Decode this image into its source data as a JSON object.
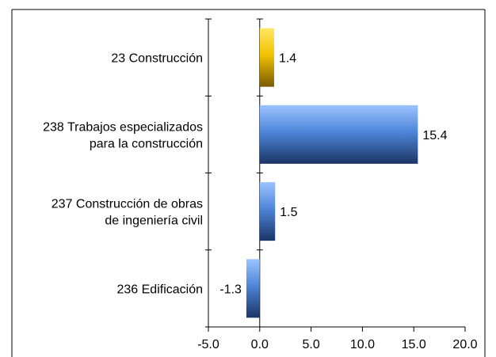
{
  "chart_data": {
    "type": "bar",
    "orientation": "horizontal",
    "categories": [
      [
        "23 Construcción"
      ],
      [
        "238 Trabajos especializados",
        "para la construcción"
      ],
      [
        "237 Construcción de obras",
        "de ingeniería civil"
      ],
      [
        "236 Edificación"
      ]
    ],
    "values": [
      1.4,
      15.4,
      1.5,
      -1.3
    ],
    "data_labels": [
      "1.4",
      "15.4",
      "1.5",
      "-1.3"
    ],
    "bar_colors": [
      "gold",
      "blue",
      "blue",
      "blue"
    ],
    "xlim": [
      -5.0,
      20.0
    ],
    "x_ticks": [
      -5.0,
      0.0,
      5.0,
      10.0,
      15.0,
      20.0
    ],
    "x_tick_labels": [
      "-5.0",
      "0.0",
      "5.0",
      "10.0",
      "15.0",
      "20.0"
    ],
    "grid": false,
    "legend": "none",
    "colors": {
      "gold_light": "#FFE866",
      "gold": "#F2C200",
      "gold_dark": "#7A5A00",
      "blue_light": "#9CC3FF",
      "blue": "#4F86D9",
      "blue_dark": "#1B3566",
      "axis": "#000000",
      "frame": "#000000"
    }
  }
}
